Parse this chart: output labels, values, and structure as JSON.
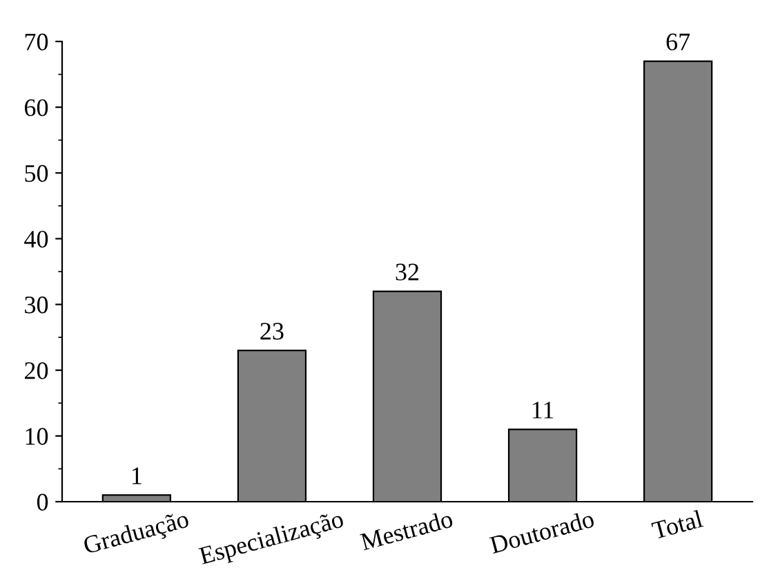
{
  "chart_data": {
    "type": "bar",
    "categories": [
      "Graduação",
      "Especialização",
      "Mestrado",
      "Doutorado",
      "Total"
    ],
    "values": [
      1,
      23,
      32,
      11,
      67
    ],
    "color": "#808080",
    "ylim": [
      0,
      70
    ],
    "yticks": [
      0,
      10,
      20,
      30,
      40,
      50,
      60,
      70
    ],
    "data_labels": true,
    "grid": false
  }
}
